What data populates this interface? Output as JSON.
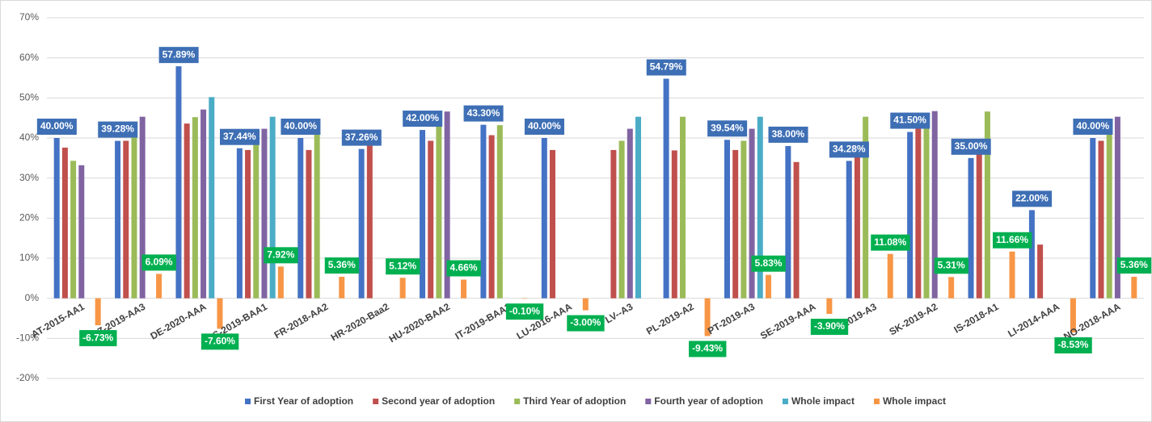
{
  "chart_data": {
    "type": "bar",
    "categories": [
      "AT-2015-AA1",
      "CZ-2019-AA3",
      "DE-2020-AAA",
      "ES-2019-BAA1",
      "FR-2018-AA2",
      "HR-2020-Baa2",
      "HU-2020-BAA2",
      "IT-2019-BAA3",
      "LU-2016-AAA",
      "LV--A3",
      "PL-2019-A2",
      "PT-2019-A3",
      "SE-2019-AAA",
      "SI-2019-A3",
      "SK-2019-A2",
      "IS-2018-A1",
      "LI-2014-AAA",
      "NO-2018-AAA"
    ],
    "series": [
      {
        "name": "First Year of adoption",
        "color": "#4472c4",
        "label_color": "#3e6fb5",
        "values": [
          40.0,
          39.28,
          57.89,
          37.44,
          40.0,
          37.26,
          42.0,
          43.3,
          40.0,
          null,
          54.79,
          39.54,
          38.0,
          34.28,
          41.5,
          35.0,
          22.0,
          40.0
        ],
        "value_labels": [
          "40.00%",
          "39.28%",
          "57.89%",
          "37.44%",
          "40.00%",
          "37.26%",
          "42.00%",
          "43.30%",
          "40.00%",
          null,
          "54.79%",
          "39.54%",
          "38.00%",
          "34.28%",
          "41.50%",
          "35.00%",
          "22.00%",
          "40.00%"
        ]
      },
      {
        "name": "Second year of adoption",
        "color": "#c0504d",
        "values": [
          37.6,
          39.3,
          43.6,
          37.0,
          37.0,
          38.5,
          39.3,
          40.7,
          37.0,
          37.0,
          36.9,
          37.0,
          34.0,
          37.0,
          43.0,
          37.0,
          13.4,
          39.3
        ]
      },
      {
        "name": "Third Year of adoption",
        "color": "#9bbb59",
        "values": [
          34.3,
          41.5,
          45.2,
          39.0,
          41.5,
          null,
          43.5,
          43.2,
          null,
          39.3,
          45.3,
          39.3,
          null,
          45.3,
          44.0,
          46.6,
          null,
          42.0
        ]
      },
      {
        "name": "Fourth year of adoption",
        "color": "#8064a2",
        "values": [
          33.2,
          45.3,
          47.1,
          42.3,
          null,
          null,
          46.6,
          null,
          null,
          42.3,
          null,
          42.3,
          null,
          null,
          46.7,
          null,
          null,
          45.3
        ]
      },
      {
        "name": "Whole impact",
        "color": "#4bacc6",
        "values": [
          null,
          null,
          50.2,
          45.3,
          null,
          null,
          null,
          null,
          null,
          45.3,
          null,
          45.3,
          null,
          null,
          null,
          null,
          null,
          null
        ]
      },
      {
        "name": "Whole impact",
        "color": "#f79646",
        "label_color": "#00b050",
        "values": [
          -6.73,
          6.09,
          -7.6,
          7.92,
          5.36,
          5.12,
          4.66,
          -0.1,
          -3.0,
          null,
          -9.43,
          5.83,
          -3.9,
          11.08,
          5.31,
          11.66,
          -8.53,
          5.36
        ],
        "value_labels": [
          "-6.73%",
          "6.09%",
          "-7.60%",
          "7.92%",
          "5.36%",
          "5.12%",
          "4.66%",
          "-0.10%",
          "-3.00%",
          null,
          "-9.43%",
          "5.83%",
          "-3.90%",
          "11.08%",
          "5.31%",
          "11.66%",
          "-8.53%",
          "5.36%"
        ]
      }
    ],
    "ylim": [
      -20,
      70
    ],
    "yticks": [
      {
        "value": -20,
        "label": "-20%"
      },
      {
        "value": -10,
        "label": "-10%"
      },
      {
        "value": 0,
        "label": "0%"
      },
      {
        "value": 10,
        "label": "10%"
      },
      {
        "value": 20,
        "label": "20%"
      },
      {
        "value": 30,
        "label": "30%"
      },
      {
        "value": 40,
        "label": "40%"
      },
      {
        "value": 50,
        "label": "50%"
      },
      {
        "value": 60,
        "label": "60%"
      },
      {
        "value": 70,
        "label": "70%"
      }
    ],
    "grid": true,
    "legend": "bottom"
  }
}
